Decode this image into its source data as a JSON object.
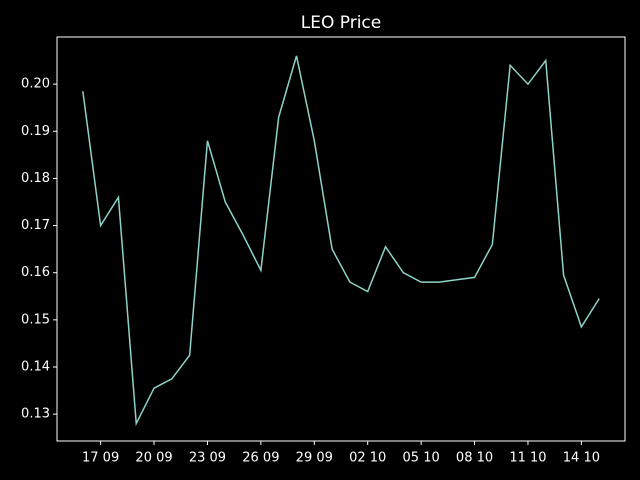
{
  "chart_data": {
    "type": "line",
    "title": "LEO Price",
    "categories": [
      null,
      "17 09",
      null,
      null,
      "20 09",
      null,
      null,
      "23 09",
      null,
      null,
      "26 09",
      null,
      null,
      "29 09",
      null,
      null,
      "02 10",
      null,
      null,
      "05 10",
      null,
      null,
      "08 10",
      null,
      null,
      "11 10",
      null,
      null,
      "14 10",
      null
    ],
    "values": [
      0.1985,
      0.17,
      0.176,
      0.128,
      0.1355,
      0.1375,
      0.1425,
      0.188,
      0.175,
      0.168,
      0.1605,
      0.193,
      0.206,
      0.188,
      0.165,
      0.158,
      0.156,
      0.1655,
      0.16,
      0.158,
      0.158,
      0.1585,
      0.159,
      0.166,
      0.204,
      0.2,
      0.205,
      0.1595,
      0.1485,
      0.1545
    ],
    "color": "#8dd3c7",
    "ylim": [
      0.1243,
      0.21
    ],
    "yticks": [
      0.13,
      0.14,
      0.15,
      0.16,
      0.17,
      0.18,
      0.19,
      {
        "value": 0.2,
        "label": "0.20"
      }
    ]
  }
}
